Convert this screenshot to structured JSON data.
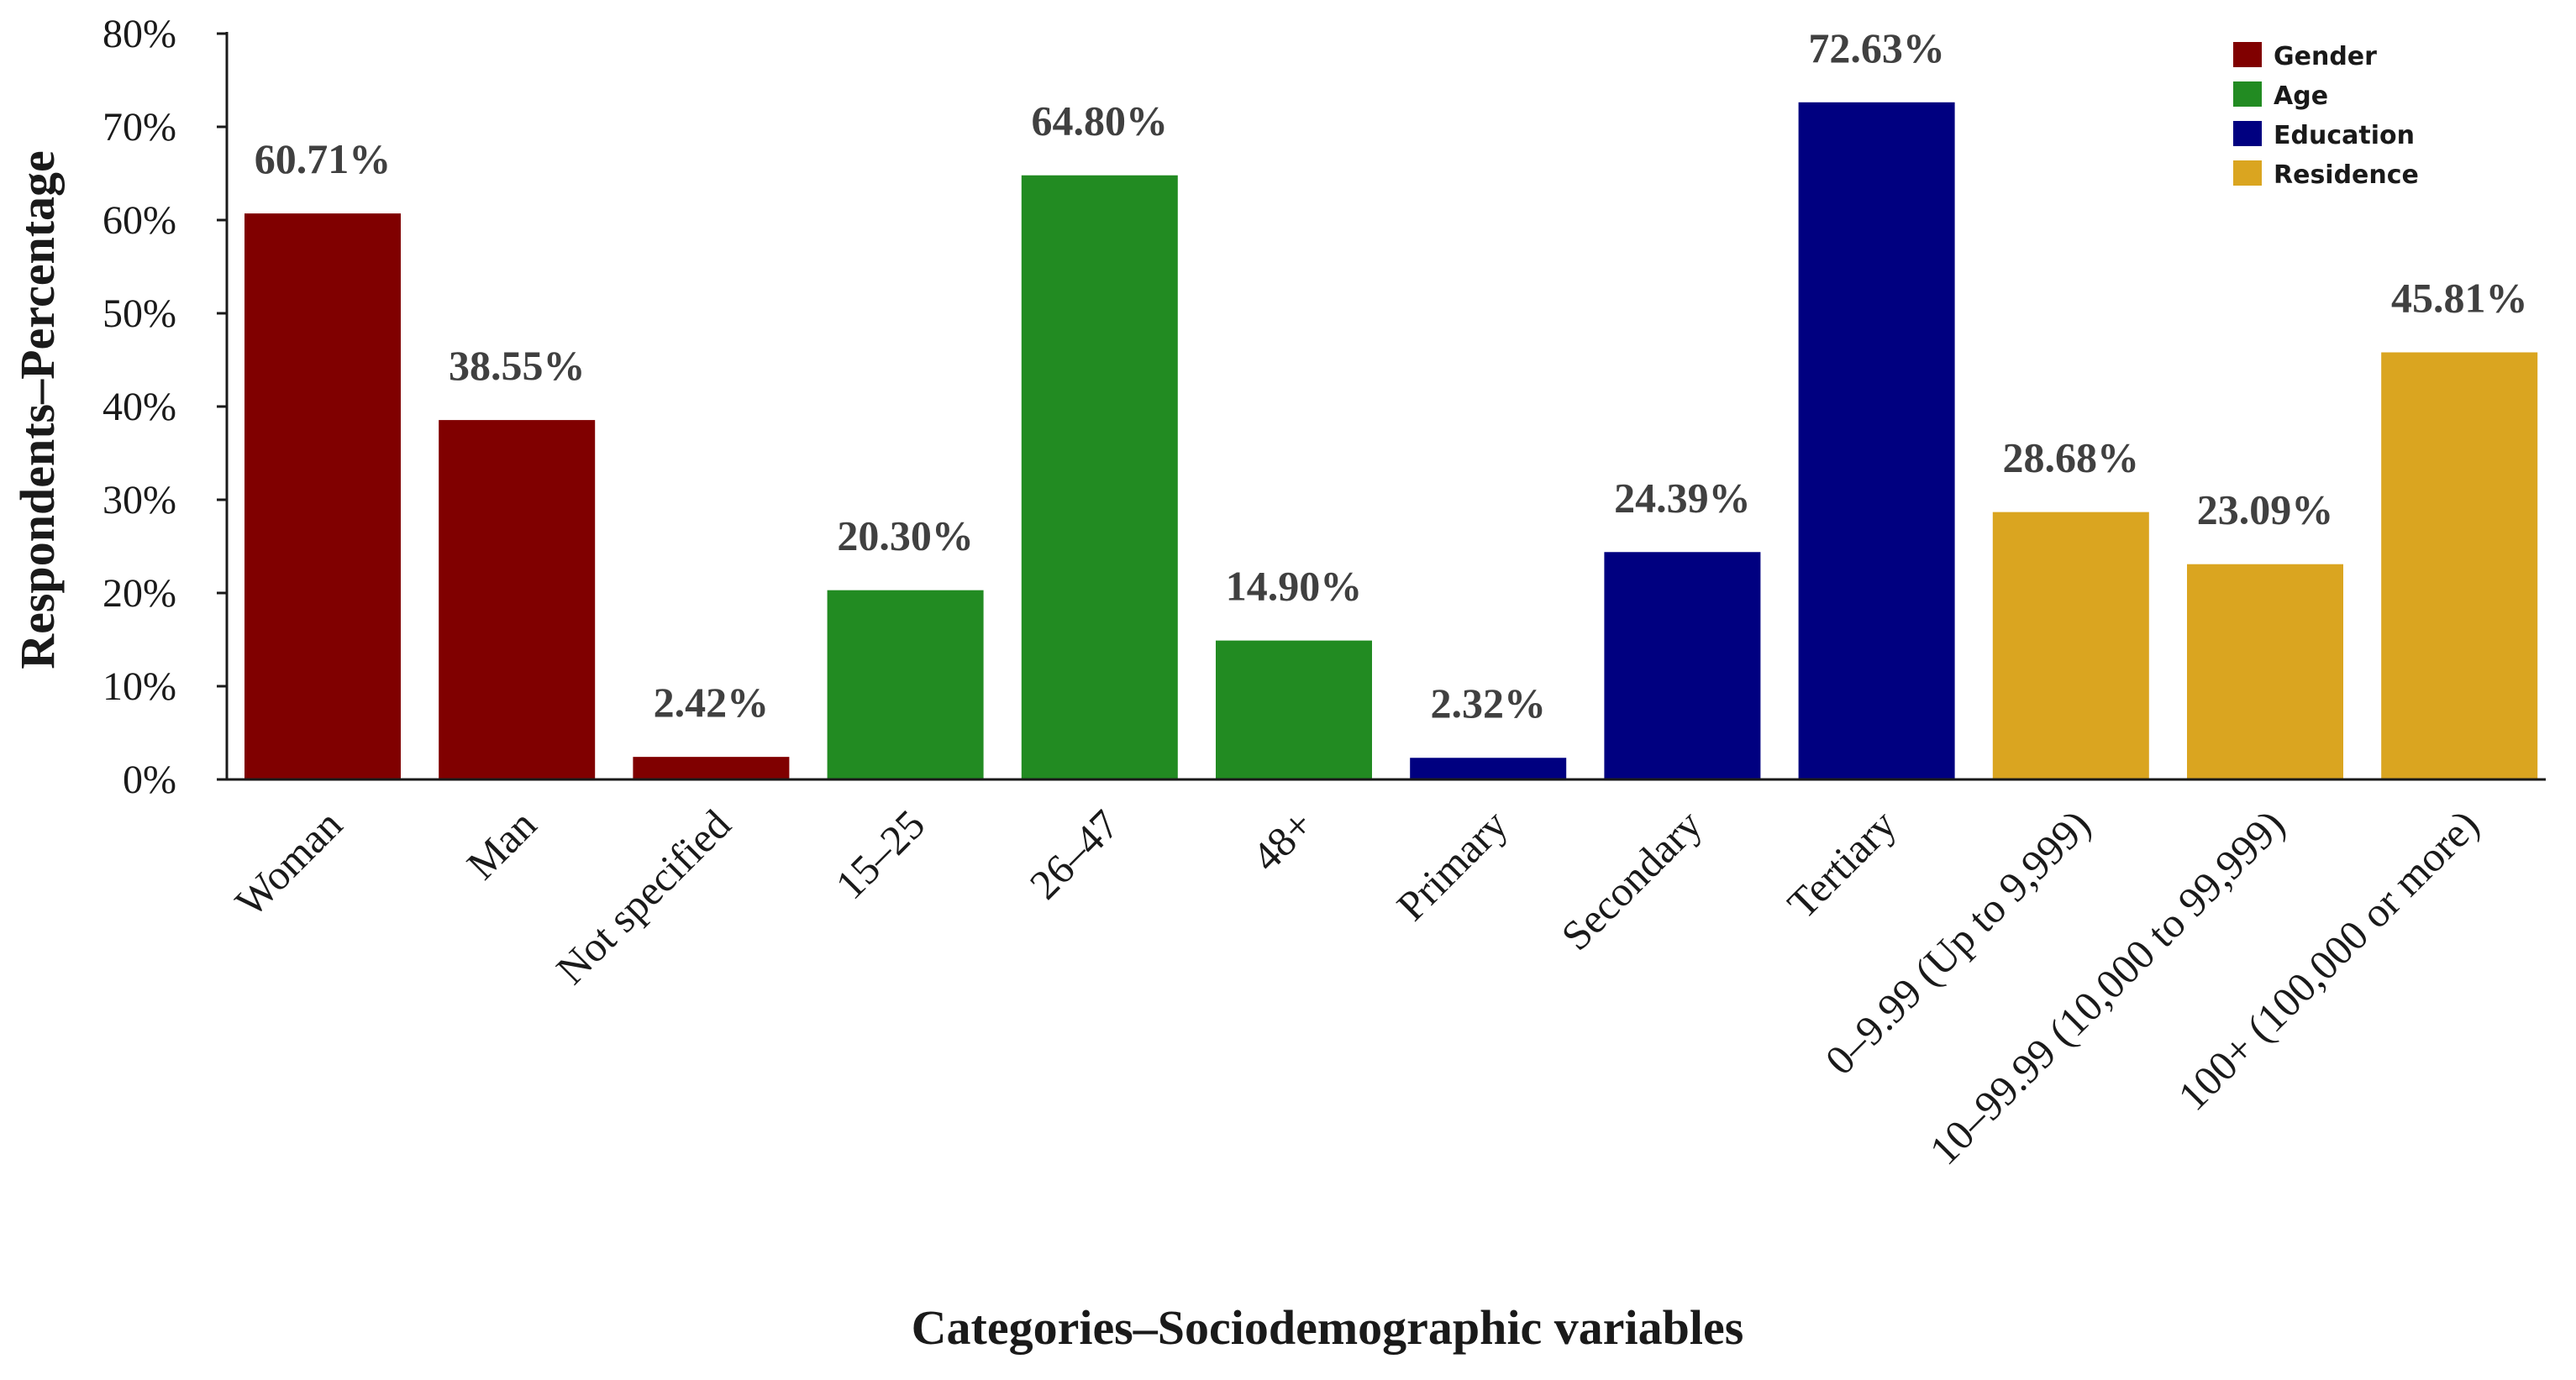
{
  "chart_data": {
    "type": "bar",
    "title": "",
    "xlabel": "Categories–Sociodemographic variables",
    "ylabel": "Respondents–Percentage",
    "ylim": [
      0,
      80
    ],
    "yticks": [
      "0%",
      "10%",
      "20%",
      "30%",
      "40%",
      "50%",
      "60%",
      "70%",
      "80%"
    ],
    "grid": false,
    "legend_position": "top-right",
    "groups": [
      {
        "name": "Gender",
        "color": "#800000"
      },
      {
        "name": "Age",
        "color": "#228B22"
      },
      {
        "name": "Education",
        "color": "#000080"
      },
      {
        "name": "Residence",
        "color": "#DAA520"
      }
    ],
    "categories": [
      "Woman",
      "Man",
      "Not specified",
      "15–25",
      "26–47",
      "48+",
      "Primary",
      "Secondary",
      "Tertiary",
      "0–9.99 (Up to 9,999)",
      "10–99.99 (10,000 to 99,999)",
      "100+ (100,000 or more)"
    ],
    "values": [
      60.71,
      38.55,
      2.42,
      20.3,
      64.8,
      14.9,
      2.32,
      24.39,
      72.63,
      28.68,
      23.09,
      45.81
    ],
    "value_labels": [
      "60.71%",
      "38.55%",
      "2.42%",
      "20.30%",
      "64.80%",
      "14.90%",
      "2.32%",
      "24.39%",
      "72.63%",
      "28.68%",
      "23.09%",
      "45.81%"
    ],
    "bar_groups": [
      "Gender",
      "Gender",
      "Gender",
      "Age",
      "Age",
      "Age",
      "Education",
      "Education",
      "Education",
      "Residence",
      "Residence",
      "Residence"
    ]
  }
}
